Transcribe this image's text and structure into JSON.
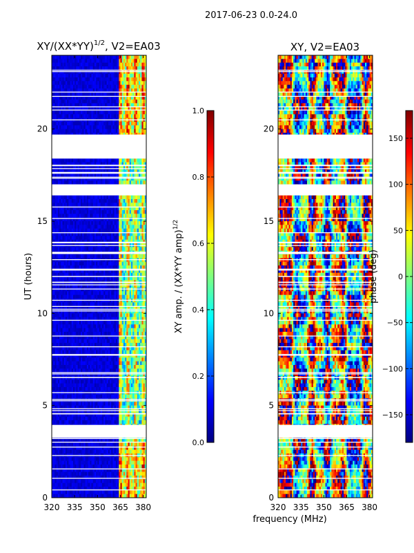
{
  "suptitle": "2017-06-23 0.0-24.0",
  "colors": {
    "jet": [
      "#00007f",
      "#0000ff",
      "#007fff",
      "#00ffff",
      "#7fff7f",
      "#ffff00",
      "#ff7f00",
      "#ff0000",
      "#7f0000"
    ],
    "axis": "#000000",
    "gap": "#ffffff"
  },
  "chart_data": [
    {
      "type": "heatmap",
      "title": "XY/(XX*YY)",
      "title_sup": "1/2",
      "title_suffix": ", V2=EA03",
      "xlabel": "",
      "ylabel": "UT (hours)",
      "xlim": [
        320,
        382
      ],
      "ylim": [
        0,
        24
      ],
      "xticks": [
        320,
        335,
        350,
        365,
        380
      ],
      "yticks": [
        0,
        5,
        10,
        15,
        20
      ],
      "colorbar": {
        "label": "XY amp. / (XX*YY amp)",
        "label_sup": "1/2",
        "range": [
          0.0,
          1.0
        ],
        "ticks": [
          "0.0",
          "0.2",
          "0.4",
          "0.6",
          "0.8",
          "1.0"
        ]
      },
      "data_gaps_hours": [
        [
          3.25,
          3.95
        ],
        [
          16.4,
          17.0
        ],
        [
          18.4,
          19.7
        ]
      ],
      "bright_band_MHz": [
        364,
        382
      ],
      "background_value": 0.05
    },
    {
      "type": "heatmap",
      "title": "XY, V2=EA03",
      "xlabel": "frequency (MHz)",
      "ylabel": "",
      "xlim": [
        320,
        382
      ],
      "ylim": [
        0,
        24
      ],
      "xticks": [
        320,
        335,
        350,
        365,
        380
      ],
      "yticks": [
        0,
        5,
        10,
        15,
        20
      ],
      "colorbar": {
        "label": "phase (deg)",
        "range": [
          -180,
          180
        ],
        "ticks": [
          "-150",
          "-100",
          "-50",
          "0",
          "50",
          "100",
          "150"
        ]
      },
      "data_gaps_hours": [
        [
          3.25,
          3.95
        ],
        [
          16.4,
          17.0
        ],
        [
          18.4,
          19.7
        ]
      ]
    }
  ]
}
